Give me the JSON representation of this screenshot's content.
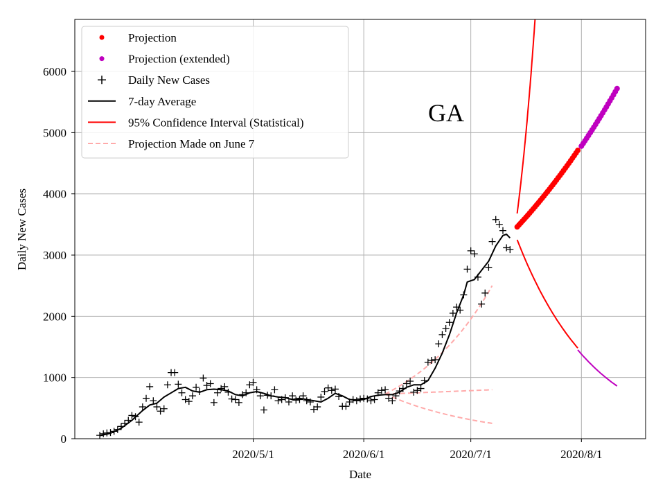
{
  "chart_data": {
    "type": "scatter",
    "xlabel": "Date",
    "ylabel": "Daily New Cases",
    "annotation": "GA",
    "x_ticks": [
      {
        "date": "2020-05-01",
        "label": "2020/5/1"
      },
      {
        "date": "2020-06-01",
        "label": "2020/6/1"
      },
      {
        "date": "2020-07-01",
        "label": "2020/7/1"
      },
      {
        "date": "2020-08-01",
        "label": "2020/8/1"
      }
    ],
    "y_ticks": [
      0,
      1000,
      2000,
      3000,
      4000,
      5000,
      6000
    ],
    "xlim": [
      "2020-03-12",
      "2020-08-19"
    ],
    "ylim": [
      0,
      6850
    ],
    "grid": true,
    "legend_placement": "top-left",
    "legend": [
      {
        "label": "Projection",
        "marker": "dot",
        "color": "#ff0000"
      },
      {
        "label": "Projection (extended)",
        "marker": "dot",
        "color": "#bf00bf"
      },
      {
        "label": "Daily New Cases",
        "marker": "plus",
        "color": "#000000"
      },
      {
        "label": "7-day Average",
        "marker": "line",
        "color": "#000000"
      },
      {
        "label": "95% Confidence Interval (Statistical)",
        "marker": "line",
        "color": "#ff0000"
      },
      {
        "label": "Projection Made on June 7",
        "marker": "dashed",
        "color": "#ffaaaa"
      }
    ],
    "daily_new_cases": [
      [
        "2020-03-19",
        55
      ],
      [
        "2020-03-20",
        80
      ],
      [
        "2020-03-21",
        95
      ],
      [
        "2020-03-22",
        100
      ],
      [
        "2020-03-23",
        120
      ],
      [
        "2020-03-24",
        150
      ],
      [
        "2020-03-25",
        200
      ],
      [
        "2020-03-26",
        250
      ],
      [
        "2020-03-27",
        300
      ],
      [
        "2020-03-28",
        380
      ],
      [
        "2020-03-29",
        360
      ],
      [
        "2020-03-30",
        270
      ],
      [
        "2020-03-31",
        520
      ],
      [
        "2020-04-01",
        660
      ],
      [
        "2020-04-02",
        850
      ],
      [
        "2020-04-03",
        620
      ],
      [
        "2020-04-04",
        520
      ],
      [
        "2020-04-05",
        450
      ],
      [
        "2020-04-06",
        490
      ],
      [
        "2020-04-07",
        880
      ],
      [
        "2020-04-08",
        1080
      ],
      [
        "2020-04-09",
        1080
      ],
      [
        "2020-04-10",
        890
      ],
      [
        "2020-04-11",
        750
      ],
      [
        "2020-04-12",
        640
      ],
      [
        "2020-04-13",
        610
      ],
      [
        "2020-04-14",
        700
      ],
      [
        "2020-04-15",
        840
      ],
      [
        "2020-04-16",
        770
      ],
      [
        "2020-04-17",
        990
      ],
      [
        "2020-04-18",
        870
      ],
      [
        "2020-04-19",
        900
      ],
      [
        "2020-04-20",
        590
      ],
      [
        "2020-04-21",
        750
      ],
      [
        "2020-04-22",
        820
      ],
      [
        "2020-04-23",
        850
      ],
      [
        "2020-04-24",
        760
      ],
      [
        "2020-04-25",
        650
      ],
      [
        "2020-04-26",
        640
      ],
      [
        "2020-04-27",
        590
      ],
      [
        "2020-04-28",
        720
      ],
      [
        "2020-04-29",
        750
      ],
      [
        "2020-04-30",
        880
      ],
      [
        "2020-05-01",
        920
      ],
      [
        "2020-05-02",
        800
      ],
      [
        "2020-05-03",
        700
      ],
      [
        "2020-05-04",
        470
      ],
      [
        "2020-05-05",
        710
      ],
      [
        "2020-05-06",
        700
      ],
      [
        "2020-05-07",
        800
      ],
      [
        "2020-05-08",
        620
      ],
      [
        "2020-05-09",
        640
      ],
      [
        "2020-05-10",
        670
      ],
      [
        "2020-05-11",
        600
      ],
      [
        "2020-05-12",
        700
      ],
      [
        "2020-05-13",
        630
      ],
      [
        "2020-05-14",
        640
      ],
      [
        "2020-05-15",
        700
      ],
      [
        "2020-05-16",
        620
      ],
      [
        "2020-05-17",
        600
      ],
      [
        "2020-05-18",
        480
      ],
      [
        "2020-05-19",
        520
      ],
      [
        "2020-05-20",
        680
      ],
      [
        "2020-05-21",
        770
      ],
      [
        "2020-05-22",
        830
      ],
      [
        "2020-05-23",
        790
      ],
      [
        "2020-05-24",
        810
      ],
      [
        "2020-05-25",
        690
      ],
      [
        "2020-05-26",
        530
      ],
      [
        "2020-05-27",
        530
      ],
      [
        "2020-05-28",
        600
      ],
      [
        "2020-05-29",
        640
      ],
      [
        "2020-05-30",
        620
      ],
      [
        "2020-05-31",
        650
      ],
      [
        "2020-06-01",
        660
      ],
      [
        "2020-06-02",
        650
      ],
      [
        "2020-06-03",
        620
      ],
      [
        "2020-06-04",
        640
      ],
      [
        "2020-06-05",
        750
      ],
      [
        "2020-06-06",
        790
      ],
      [
        "2020-06-07",
        800
      ],
      [
        "2020-06-08",
        660
      ],
      [
        "2020-06-09",
        620
      ],
      [
        "2020-06-10",
        700
      ],
      [
        "2020-06-11",
        780
      ],
      [
        "2020-06-12",
        820
      ],
      [
        "2020-06-13",
        900
      ],
      [
        "2020-06-14",
        940
      ],
      [
        "2020-06-15",
        760
      ],
      [
        "2020-06-16",
        790
      ],
      [
        "2020-06-17",
        820
      ],
      [
        "2020-06-18",
        950
      ],
      [
        "2020-06-19",
        1250
      ],
      [
        "2020-06-20",
        1280
      ],
      [
        "2020-06-21",
        1290
      ],
      [
        "2020-06-22",
        1550
      ],
      [
        "2020-06-23",
        1700
      ],
      [
        "2020-06-24",
        1800
      ],
      [
        "2020-06-25",
        1900
      ],
      [
        "2020-06-26",
        2050
      ],
      [
        "2020-06-27",
        2150
      ],
      [
        "2020-06-28",
        2100
      ],
      [
        "2020-06-29",
        2350
      ],
      [
        "2020-06-30",
        2770
      ],
      [
        "2020-07-01",
        3070
      ],
      [
        "2020-07-02",
        3020
      ],
      [
        "2020-07-03",
        2640
      ],
      [
        "2020-07-04",
        2200
      ],
      [
        "2020-07-05",
        2380
      ],
      [
        "2020-07-06",
        2800
      ],
      [
        "2020-07-07",
        3220
      ],
      [
        "2020-07-08",
        3580
      ],
      [
        "2020-07-09",
        3500
      ],
      [
        "2020-07-10",
        3400
      ],
      [
        "2020-07-11",
        3120
      ],
      [
        "2020-07-12",
        3090
      ]
    ],
    "seven_day_average": [
      [
        "2020-03-19",
        50
      ],
      [
        "2020-03-22",
        90
      ],
      [
        "2020-03-25",
        170
      ],
      [
        "2020-03-28",
        300
      ],
      [
        "2020-03-31",
        460
      ],
      [
        "2020-04-02",
        550
      ],
      [
        "2020-04-04",
        580
      ],
      [
        "2020-04-06",
        680
      ],
      [
        "2020-04-08",
        750
      ],
      [
        "2020-04-10",
        820
      ],
      [
        "2020-04-12",
        840
      ],
      [
        "2020-04-14",
        780
      ],
      [
        "2020-04-16",
        760
      ],
      [
        "2020-04-18",
        800
      ],
      [
        "2020-04-20",
        810
      ],
      [
        "2020-04-22",
        800
      ],
      [
        "2020-04-24",
        780
      ],
      [
        "2020-04-26",
        720
      ],
      [
        "2020-04-28",
        700
      ],
      [
        "2020-04-30",
        750
      ],
      [
        "2020-05-02",
        770
      ],
      [
        "2020-05-04",
        740
      ],
      [
        "2020-05-06",
        700
      ],
      [
        "2020-05-08",
        680
      ],
      [
        "2020-05-10",
        670
      ],
      [
        "2020-05-12",
        640
      ],
      [
        "2020-05-14",
        660
      ],
      [
        "2020-05-16",
        640
      ],
      [
        "2020-05-18",
        620
      ],
      [
        "2020-05-20",
        600
      ],
      [
        "2020-05-22",
        660
      ],
      [
        "2020-05-24",
        740
      ],
      [
        "2020-05-26",
        700
      ],
      [
        "2020-05-28",
        640
      ],
      [
        "2020-05-30",
        630
      ],
      [
        "2020-06-01",
        640
      ],
      [
        "2020-06-03",
        690
      ],
      [
        "2020-06-05",
        710
      ],
      [
        "2020-06-07",
        720
      ],
      [
        "2020-06-09",
        720
      ],
      [
        "2020-06-11",
        760
      ],
      [
        "2020-06-13",
        840
      ],
      [
        "2020-06-15",
        880
      ],
      [
        "2020-06-17",
        880
      ],
      [
        "2020-06-19",
        950
      ],
      [
        "2020-06-21",
        1150
      ],
      [
        "2020-06-23",
        1400
      ],
      [
        "2020-06-25",
        1700
      ],
      [
        "2020-06-27",
        2050
      ],
      [
        "2020-06-29",
        2350
      ],
      [
        "2020-06-30",
        2560
      ],
      [
        "2020-07-01",
        2580
      ],
      [
        "2020-07-02",
        2600
      ],
      [
        "2020-07-04",
        2750
      ],
      [
        "2020-07-06",
        2900
      ],
      [
        "2020-07-08",
        3150
      ],
      [
        "2020-07-10",
        3320
      ],
      [
        "2020-07-11",
        3340
      ],
      [
        "2020-07-12",
        3280
      ]
    ],
    "projection": {
      "start": "2020-07-14",
      "end": "2020-07-31",
      "start_value": 3460,
      "end_value": 4710
    },
    "projection_extended": {
      "start": "2020-08-01",
      "end": "2020-08-11",
      "start_value": 4780,
      "end_value": 5720
    },
    "confidence_interval": {
      "upper": {
        "start": "2020-07-14",
        "start_value": 3680,
        "end": "2020-07-19",
        "end_value": 6850
      },
      "lower": [
        {
          "segment": "statistical",
          "start": "2020-07-14",
          "start_value": 3250,
          "end": "2020-07-31",
          "end_value": 1480
        },
        {
          "segment": "extended",
          "start": "2020-07-31",
          "start_value": 1450,
          "end": "2020-08-11",
          "end_value": 860
        }
      ]
    },
    "projection_june7": {
      "start": "2020-06-07",
      "end": "2020-07-07",
      "start_value": 730,
      "upper_end": 2500,
      "middle_end": 800,
      "lower_end": 250
    }
  }
}
